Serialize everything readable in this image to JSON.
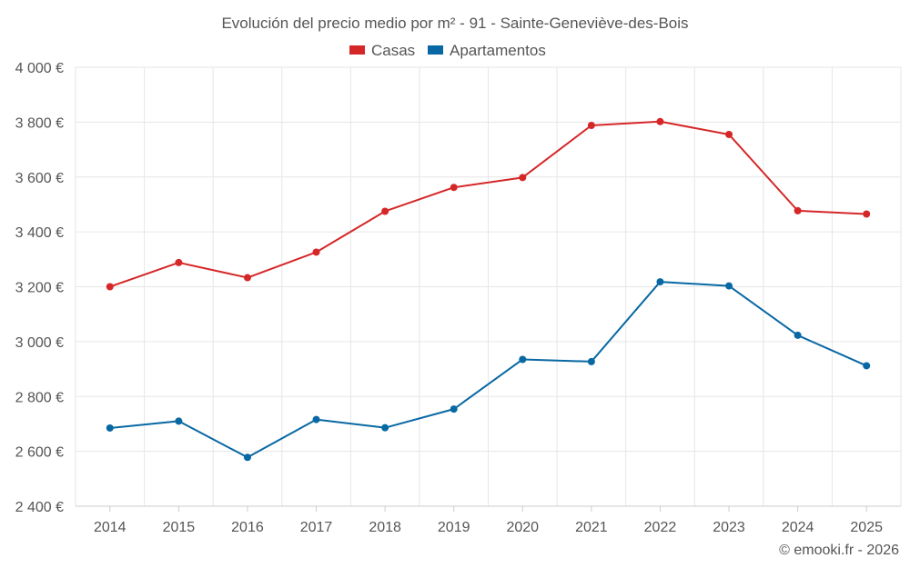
{
  "chart_data": {
    "type": "line",
    "title": "Evolución del precio medio por m² - 91 - Sainte-Geneviève-des-Bois",
    "categories": [
      "2014",
      "2015",
      "2016",
      "2017",
      "2018",
      "2019",
      "2020",
      "2021",
      "2022",
      "2023",
      "2024",
      "2025"
    ],
    "series": [
      {
        "name": "Casas",
        "color": "#d62728",
        "values": [
          3200,
          3288,
          3233,
          3326,
          3475,
          3562,
          3598,
          3788,
          3802,
          3755,
          3477,
          3465
        ]
      },
      {
        "name": "Apartamentos",
        "color": "#0868a3",
        "values": [
          2685,
          2710,
          2578,
          2716,
          2686,
          2754,
          2935,
          2927,
          3218,
          3203,
          3023,
          2912
        ]
      }
    ],
    "ylim": [
      2400,
      4000
    ],
    "yticks": [
      2400,
      2600,
      2800,
      3000,
      3200,
      3400,
      3600,
      3800,
      4000
    ],
    "ytick_labels": [
      "2 400 €",
      "2 600 €",
      "2 800 €",
      "3 000 €",
      "3 200 €",
      "3 400 €",
      "3 600 €",
      "3 800 €",
      "4 000 €"
    ],
    "xlabel": "",
    "ylabel": "",
    "legend_position": "top-center",
    "grid": true
  },
  "footer": {
    "credit": "© emooki.fr - 2026"
  }
}
